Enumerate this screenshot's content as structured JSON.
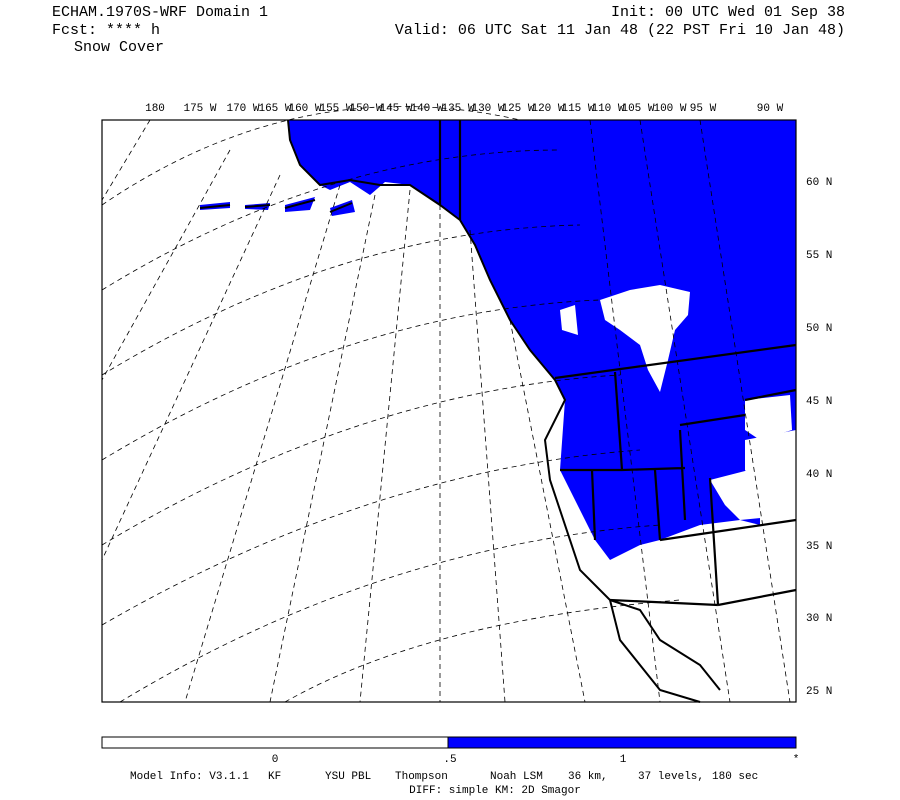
{
  "header": {
    "title": "ECHAM.1970S-WRF Domain 1",
    "forecast": "Fcst: **** h",
    "field": "Snow Cover",
    "init": "Init: 00 UTC Wed 01 Sep 38",
    "valid": "Valid: 06 UTC Sat 11 Jan 48 (22 PST Fri 10 Jan 48)"
  },
  "map": {
    "lon_labels": [
      "180",
      "175 W",
      "170 W",
      "165 W",
      "160 W",
      "155 W",
      "150 W",
      "145 W",
      "140 W",
      "135 W",
      "130 W",
      "125 W",
      "120 W",
      "115 W",
      "110 W",
      "105 W",
      "100 W",
      "95 W",
      "90 W"
    ],
    "lat_labels": [
      "60 N",
      "55 N",
      "50 N",
      "45 N",
      "40 N",
      "35 N",
      "30 N",
      "25 N"
    ]
  },
  "colorbar": {
    "labels": [
      "0",
      ".5",
      "1",
      "*"
    ]
  },
  "footer": {
    "items": [
      "Model Info: V3.1.1",
      "KF",
      "YSU PBL",
      "Thompson",
      "Noah LSM",
      "36 km,",
      "37 levels,",
      "180 sec"
    ],
    "diff": "DIFF: simple KM: 2D Smagor"
  }
}
